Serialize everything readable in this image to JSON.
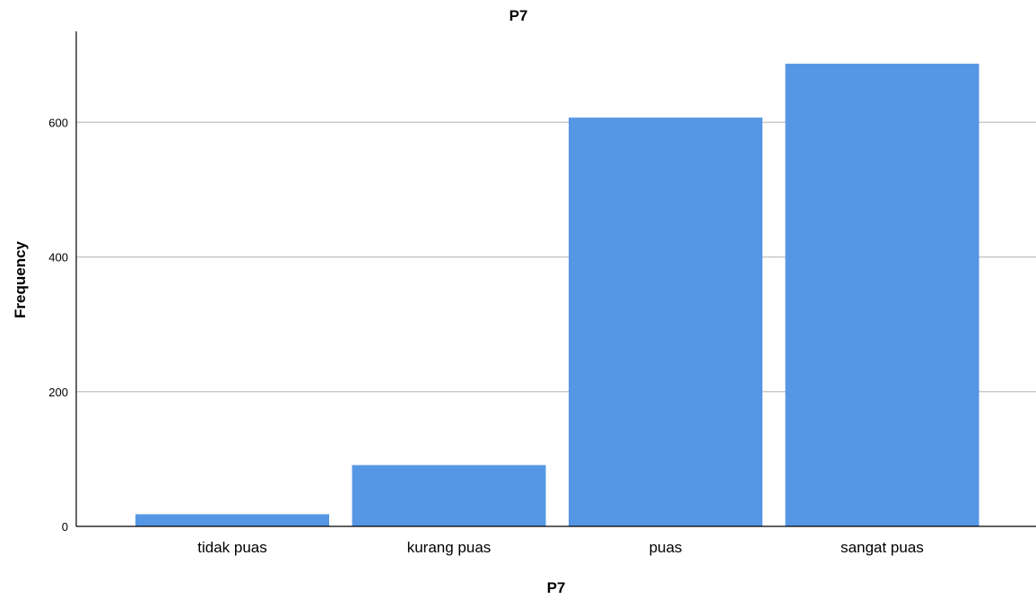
{
  "chart_data": {
    "type": "bar",
    "title": "P7",
    "xlabel": "P7",
    "ylabel": "Frequency",
    "categories": [
      "tidak puas",
      "kurang puas",
      "puas",
      "sangat puas"
    ],
    "values": [
      18,
      91,
      607,
      687
    ],
    "ylim": [
      0,
      735
    ],
    "yticks": [
      0,
      200,
      400,
      600
    ],
    "grid": true,
    "legend": "none",
    "colors": {
      "bar": "#5697e5",
      "grid": "#c8c8c8",
      "axis": "#000000"
    }
  }
}
